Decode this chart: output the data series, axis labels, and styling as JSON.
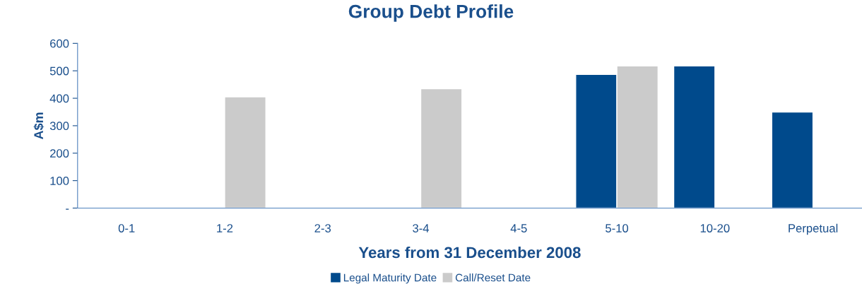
{
  "chart_data": {
    "type": "bar",
    "title": "Group Debt Profile",
    "xlabel": "Years from 31 December 2008",
    "ylabel": "A$m",
    "categories": [
      "0-1",
      "1-2",
      "2-3",
      "3-4",
      "4-5",
      "5-10",
      "10-20",
      "Perpetual"
    ],
    "series": [
      {
        "name": "Legal Maturity Date",
        "color": "#004a8c",
        "values": [
          null,
          null,
          null,
          null,
          null,
          487,
          518,
          350
        ]
      },
      {
        "name": "Call/Reset Date",
        "color": "#cbcbcb",
        "values": [
          null,
          405,
          null,
          435,
          null,
          518,
          null,
          null
        ]
      }
    ],
    "ylim": [
      0,
      600
    ],
    "yticks": [
      {
        "value": 0,
        "label": "-"
      },
      100,
      200,
      300,
      400,
      500,
      600
    ],
    "grid": false,
    "legend": "bottom"
  }
}
